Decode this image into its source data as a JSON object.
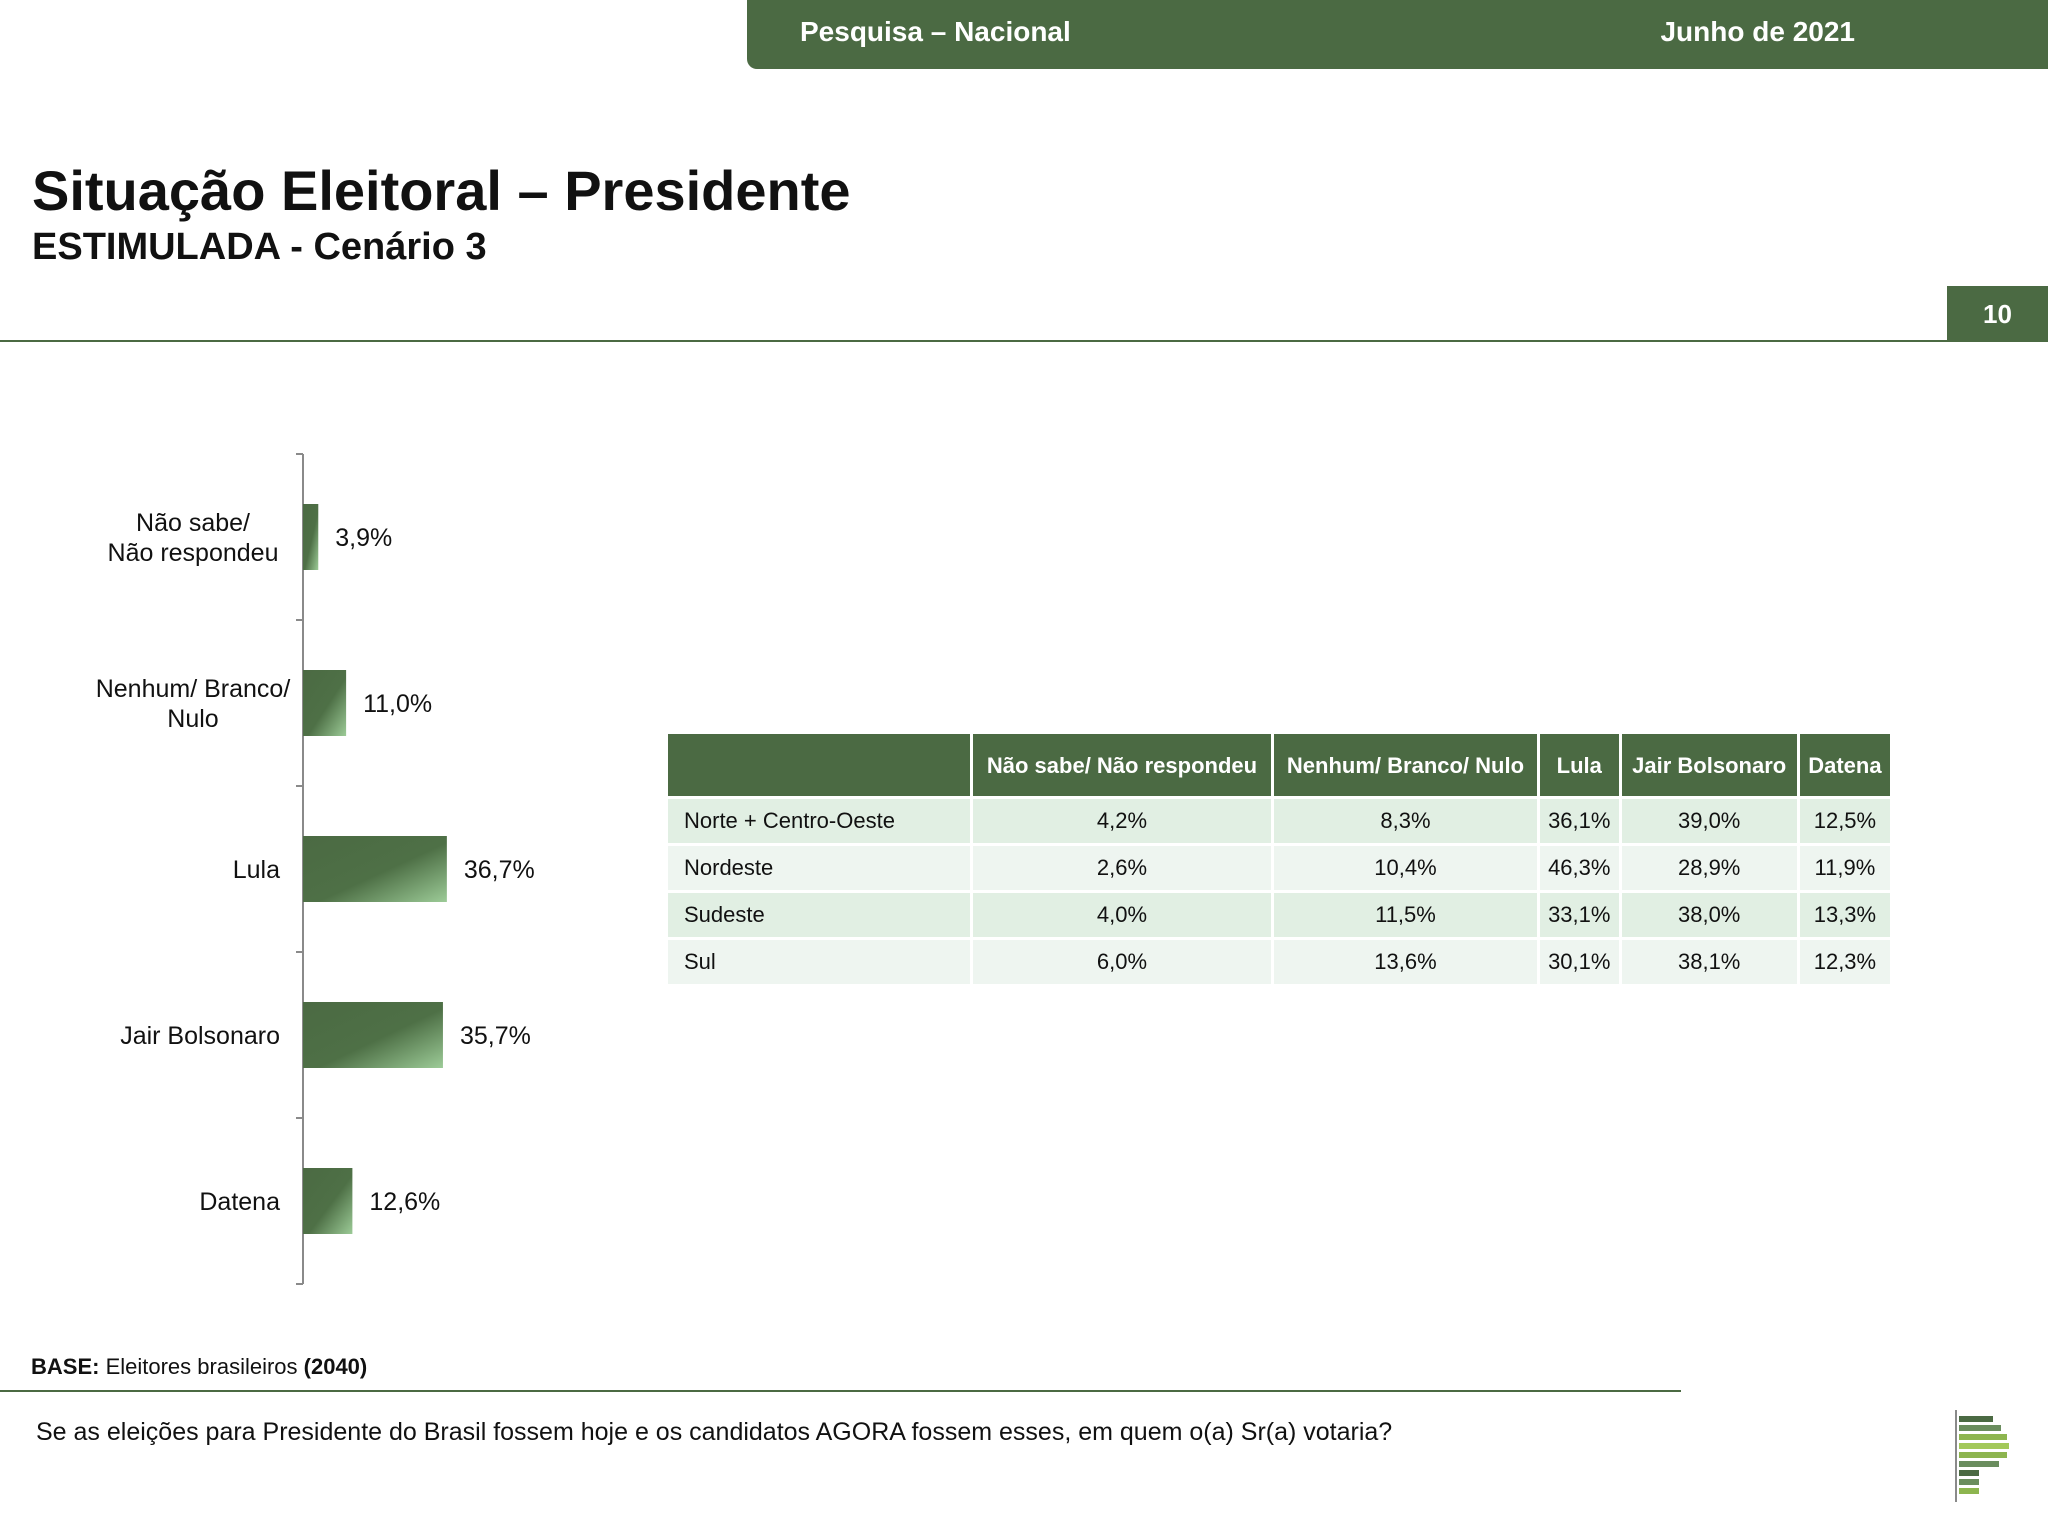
{
  "header": {
    "left_text": "Pesquisa – Nacional",
    "right_text": "Junho de 2021",
    "page_number": "10"
  },
  "title": "Situação Eleitoral – Presidente",
  "subtitle": "ESTIMULADA - Cenário 3",
  "colors": {
    "brand_green": "#4b6a43",
    "row_odd": "#e1efe3",
    "row_even": "#eef5f0"
  },
  "chart_data": {
    "type": "bar",
    "orientation": "horizontal",
    "categories": [
      [
        "Não sabe/",
        "Não respondeu"
      ],
      [
        "Nenhum/ Branco/",
        "Nulo"
      ],
      [
        "Lula"
      ],
      [
        "Jair Bolsonaro"
      ],
      [
        "Datena"
      ]
    ],
    "values": [
      3.9,
      11.0,
      36.7,
      35.7,
      12.6
    ],
    "value_labels": [
      "3,9%",
      "11,0%",
      "36,7%",
      "35,7%",
      "12,6%"
    ],
    "title": "",
    "xlabel": "",
    "ylabel": "",
    "grid": false,
    "legend": "none"
  },
  "table": {
    "columns": [
      "",
      "Não sabe/ Não respondeu",
      "Nenhum/ Branco/ Nulo",
      "Lula",
      "Jair Bolsonaro",
      "Datena"
    ],
    "rows": [
      {
        "region": "Norte + Centro-Oeste",
        "values": [
          "4,2%",
          "8,3%",
          "36,1%",
          "39,0%",
          "12,5%"
        ]
      },
      {
        "region": "Nordeste",
        "values": [
          "2,6%",
          "10,4%",
          "46,3%",
          "28,9%",
          "11,9%"
        ]
      },
      {
        "region": "Sudeste",
        "values": [
          "4,0%",
          "11,5%",
          "33,1%",
          "38,0%",
          "13,3%"
        ]
      },
      {
        "region": "Sul",
        "values": [
          "6,0%",
          "13,6%",
          "30,1%",
          "38,1%",
          "12,3%"
        ]
      }
    ]
  },
  "footer": {
    "base_label": "BASE:",
    "base_text": " Eleitores brasileiros ",
    "base_count": "(2040)",
    "question": "Se as eleições para Presidente do Brasil fossem hoje e os candidatos AGORA fossem esses, em quem o(a) Sr(a) votaria?"
  }
}
